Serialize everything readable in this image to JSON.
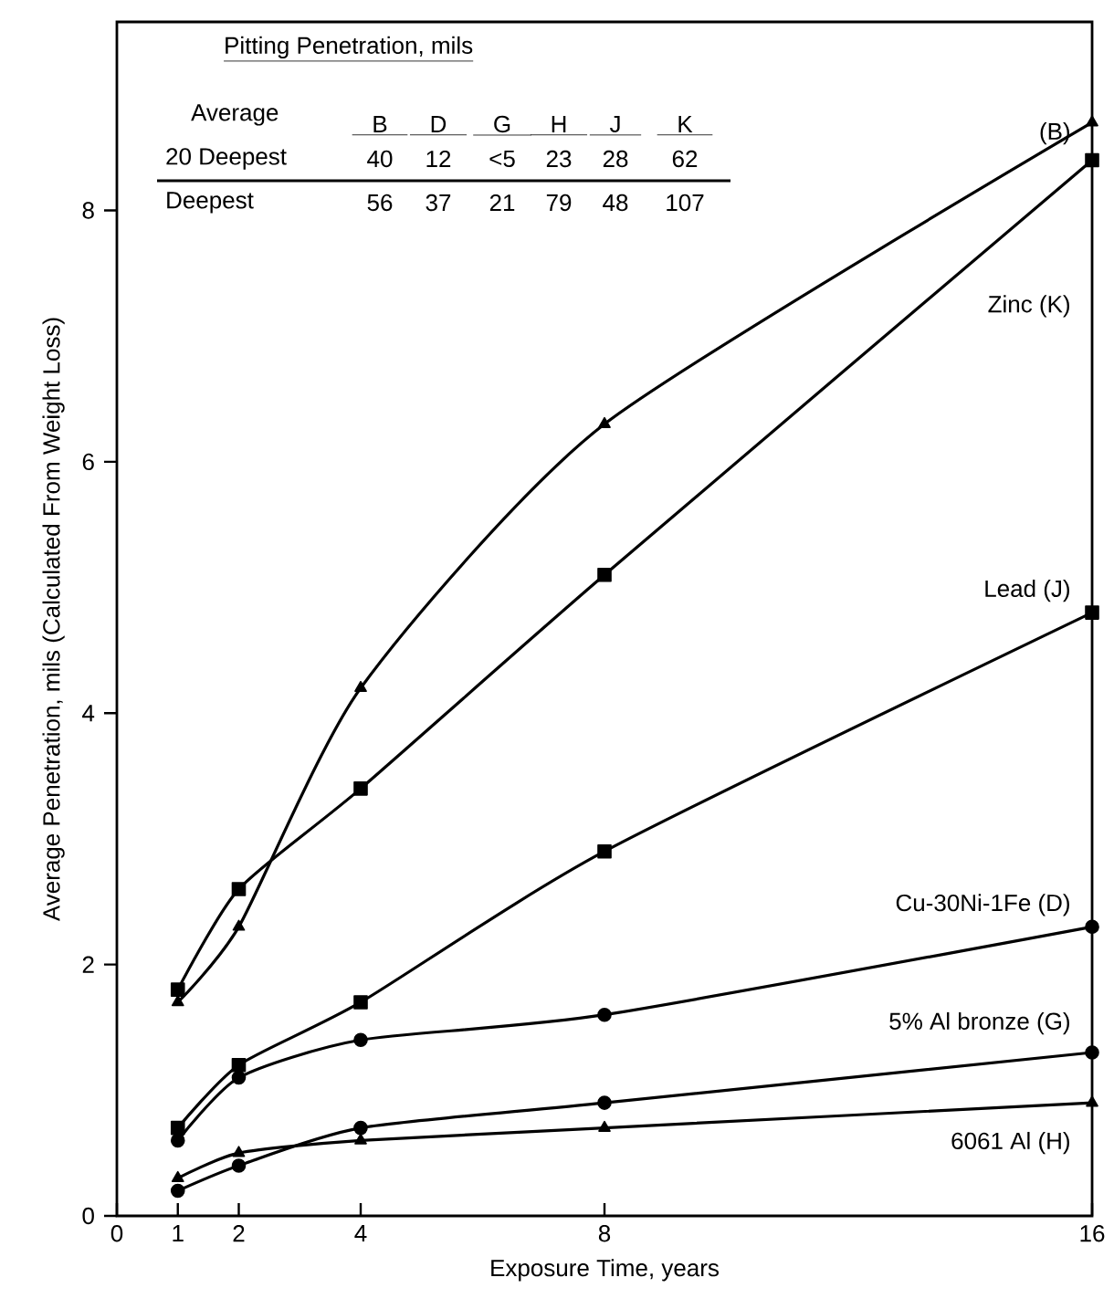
{
  "chart_data": {
    "type": "line",
    "xlabel": "Exposure Time, years",
    "ylabel": "Average Penetration, mils (Calculated From Weight Loss)",
    "x": [
      1,
      2,
      4,
      8,
      16
    ],
    "xlim": [
      0,
      16
    ],
    "xticks": [
      0,
      1,
      2,
      4,
      8,
      16
    ],
    "ylim": [
      0,
      9.5
    ],
    "yticks": [
      0,
      2,
      4,
      6,
      8
    ],
    "grid": false,
    "line_style": "solid",
    "series": [
      {
        "name": "(B)",
        "color": "#000000",
        "marker": "triangle",
        "values": [
          1.7,
          2.3,
          4.2,
          6.3,
          8.7
        ]
      },
      {
        "name": "Zinc (K)",
        "color": "#000000",
        "marker": "square",
        "values": [
          1.8,
          2.6,
          3.4,
          5.1,
          8.4
        ]
      },
      {
        "name": "Lead (J)",
        "color": "#000000",
        "marker": "square",
        "values": [
          0.7,
          1.2,
          1.7,
          2.9,
          4.8
        ]
      },
      {
        "name": "Cu-30Ni-1Fe (D)",
        "color": "#000000",
        "marker": "circle",
        "values": [
          0.6,
          1.1,
          1.4,
          1.6,
          2.3
        ]
      },
      {
        "name": "5% Al bronze (G)",
        "color": "#000000",
        "marker": "circle",
        "values": [
          0.2,
          0.4,
          0.7,
          0.9,
          1.3
        ]
      },
      {
        "name": "6061 Al (H)",
        "color": "#000000",
        "marker": "triangle",
        "values": [
          0.3,
          0.5,
          0.6,
          0.7,
          0.9
        ]
      }
    ],
    "annotations": [
      "Pitting Penetration, mils",
      "Average",
      "B",
      "D",
      "G",
      "H",
      "J",
      "K",
      "20 Deepest",
      "40",
      "12",
      "<5",
      "23",
      "28",
      "62",
      "Deepest",
      "56",
      "37",
      "21",
      "79",
      "48",
      "107"
    ]
  }
}
